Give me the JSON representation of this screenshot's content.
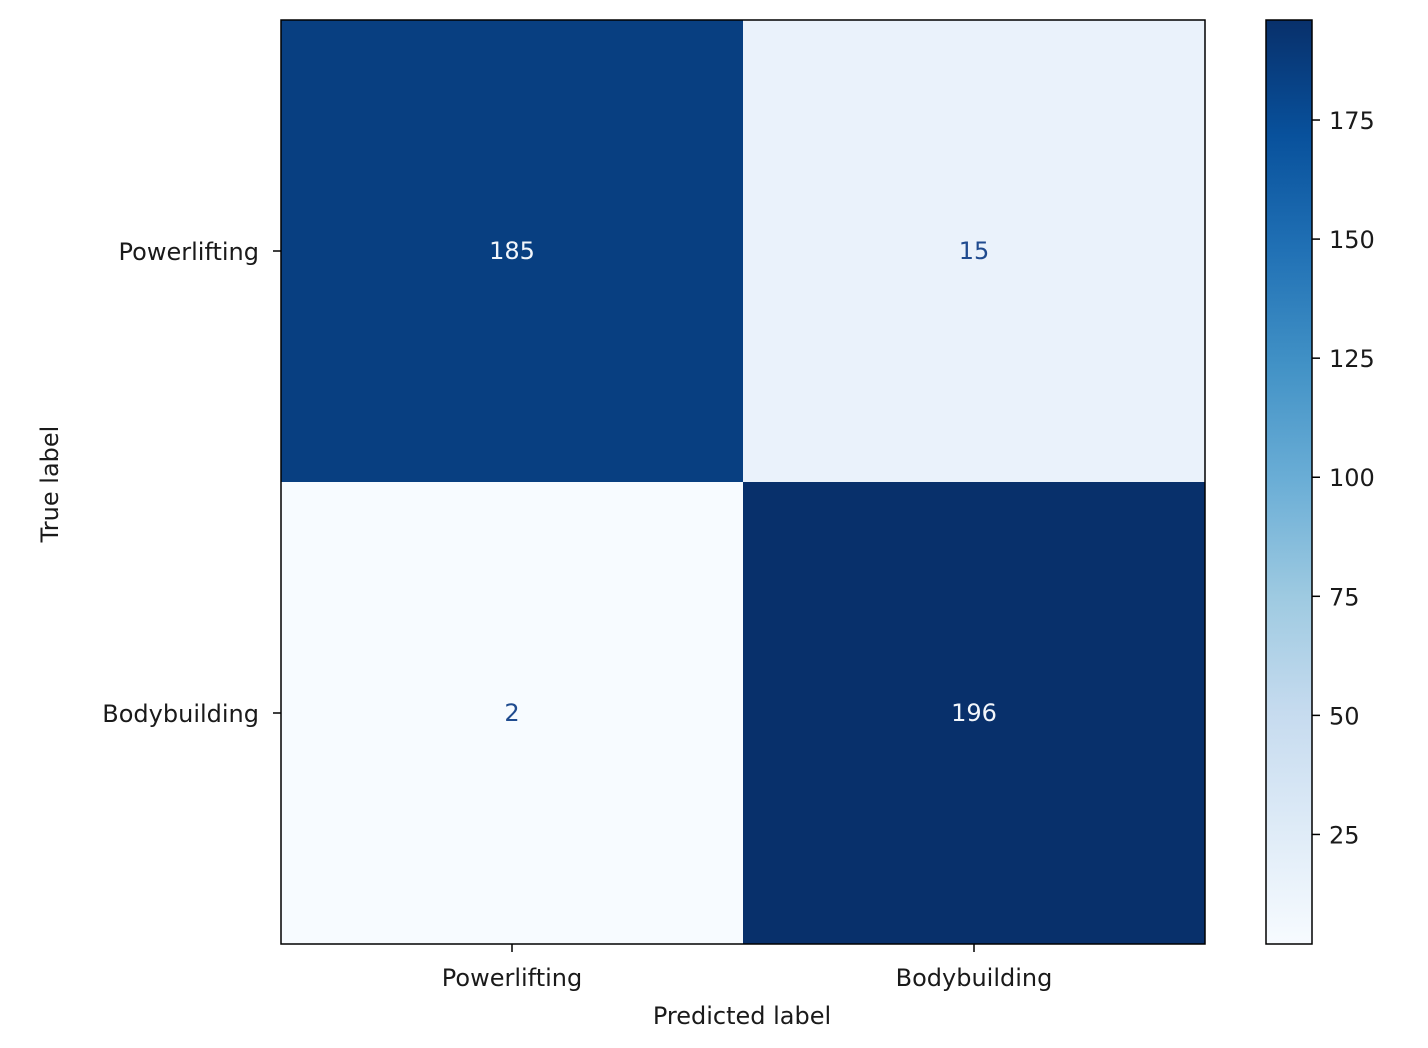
{
  "chart_data": {
    "type": "heatmap",
    "title": "",
    "xlabel": "Predicted label",
    "ylabel": "True label",
    "x_categories": [
      "Powerlifting",
      "Bodybuilding"
    ],
    "y_categories": [
      "Powerlifting",
      "Bodybuilding"
    ],
    "values": [
      [
        185,
        15
      ],
      [
        2,
        196
      ]
    ],
    "colormap": "Blues",
    "colorbar": {
      "ticks": [
        25,
        50,
        75,
        100,
        125,
        150,
        175
      ],
      "range": [
        2,
        196
      ]
    },
    "text_colors": {
      "on_dark": "#f2f6fb",
      "on_light": "#1f4b8f"
    }
  }
}
